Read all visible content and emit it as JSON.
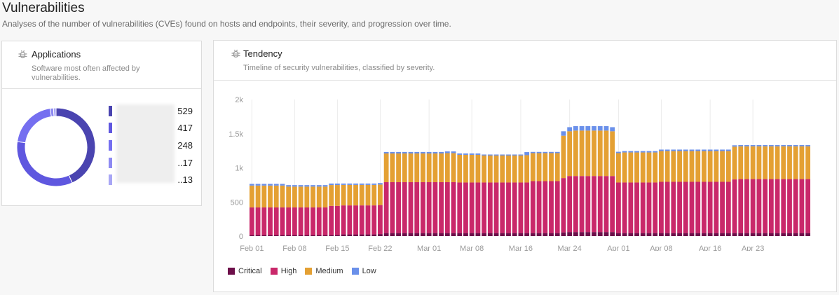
{
  "header": {
    "title": "Vulnerabilities",
    "description": "Analyses of the number of vulnerabilities (CVEs) found on hosts and endpoints, their severity, and progression over time."
  },
  "applications_card": {
    "icon": "bug-icon",
    "title": "Applications",
    "subtitle": "Software most often affected by vulnerabilities.",
    "items": [
      {
        "name": "",
        "value": "529",
        "count": 529,
        "color": "#4a44b0"
      },
      {
        "name": "",
        "value": "417",
        "count": 417,
        "color": "#5f57df"
      },
      {
        "name": "",
        "value": "248",
        "count": 248,
        "color": "#756ff0"
      },
      {
        "name": "",
        "value": "..17",
        "count": 17,
        "color": "#8e8af2"
      },
      {
        "name": "",
        "value": "..13",
        "count": 13,
        "color": "#a8a6f5"
      }
    ]
  },
  "tendency_card": {
    "icon": "bug-icon",
    "title": "Tendency",
    "subtitle": "Timeline of security vulnerabilities, classified by severity."
  },
  "chart_data": {
    "type": "bar",
    "stacked": true,
    "title": "Tendency",
    "xlabel": "",
    "ylabel": "",
    "ylim": [
      0,
      2000
    ],
    "yticks": [
      {
        "value": 0,
        "label": "0"
      },
      {
        "value": 500,
        "label": "500"
      },
      {
        "value": 1000,
        "label": "1k"
      },
      {
        "value": 1500,
        "label": "1.5k"
      },
      {
        "value": 2000,
        "label": "2k"
      }
    ],
    "xticks": [
      {
        "index": 0,
        "label": "Feb 01"
      },
      {
        "index": 7,
        "label": "Feb 08"
      },
      {
        "index": 14,
        "label": "Feb 15"
      },
      {
        "index": 21,
        "label": "Feb 22"
      },
      {
        "index": 29,
        "label": "Mar 01"
      },
      {
        "index": 36,
        "label": "Mar 08"
      },
      {
        "index": 44,
        "label": "Mar 16"
      },
      {
        "index": 52,
        "label": "Mar 24"
      },
      {
        "index": 60,
        "label": "Apr 01"
      },
      {
        "index": 67,
        "label": "Apr 08"
      },
      {
        "index": 75,
        "label": "Apr 16"
      },
      {
        "index": 82,
        "label": "Apr 23"
      }
    ],
    "grid": true,
    "legend_position": "bottom-left",
    "series_colors": {
      "Critical": "#6d0f4a",
      "High": "#c9286a",
      "Medium": "#e4a033",
      "Low": "#6a90ea"
    },
    "segments": [
      {
        "count": 6,
        "critical": 15,
        "high": 405,
        "medium": 320,
        "low": 25
      },
      {
        "count": 7,
        "critical": 15,
        "high": 405,
        "medium": 305,
        "low": 22
      },
      {
        "count": 2,
        "critical": 18,
        "high": 425,
        "medium": 305,
        "low": 22
      },
      {
        "count": 6,
        "critical": 25,
        "high": 425,
        "medium": 300,
        "low": 20
      },
      {
        "count": 1,
        "critical": 30,
        "high": 425,
        "medium": 300,
        "low": 22
      },
      {
        "count": 10,
        "critical": 45,
        "high": 745,
        "medium": 420,
        "low": 22
      },
      {
        "count": 2,
        "critical": 45,
        "high": 745,
        "medium": 425,
        "low": 25
      },
      {
        "count": 4,
        "critical": 45,
        "high": 740,
        "medium": 405,
        "low": 20
      },
      {
        "count": 7,
        "critical": 45,
        "high": 740,
        "medium": 395,
        "low": 15
      },
      {
        "count": 1,
        "critical": 45,
        "high": 740,
        "medium": 400,
        "low": 45
      },
      {
        "count": 5,
        "critical": 45,
        "high": 760,
        "medium": 410,
        "low": 18
      },
      {
        "count": 1,
        "critical": 55,
        "high": 795,
        "medium": 620,
        "low": 65
      },
      {
        "count": 1,
        "critical": 60,
        "high": 820,
        "medium": 655,
        "low": 60
      },
      {
        "count": 6,
        "critical": 60,
        "high": 820,
        "medium": 665,
        "low": 65
      },
      {
        "count": 1,
        "critical": 60,
        "high": 820,
        "medium": 655,
        "low": 60
      },
      {
        "count": 1,
        "critical": 45,
        "high": 740,
        "medium": 430,
        "low": 20
      },
      {
        "count": 6,
        "critical": 45,
        "high": 740,
        "medium": 440,
        "low": 20
      },
      {
        "count": 12,
        "critical": 45,
        "high": 750,
        "medium": 450,
        "low": 22
      },
      {
        "count": 1,
        "critical": 45,
        "high": 785,
        "medium": 480,
        "low": 20
      },
      {
        "count": 12,
        "critical": 45,
        "high": 790,
        "medium": 480,
        "low": 18
      }
    ],
    "series": [
      "Critical",
      "High",
      "Medium",
      "Low"
    ]
  },
  "legend": [
    {
      "label": "Critical",
      "color": "#6d0f4a"
    },
    {
      "label": "High",
      "color": "#c9286a"
    },
    {
      "label": "Medium",
      "color": "#e4a033"
    },
    {
      "label": "Low",
      "color": "#6a90ea"
    }
  ]
}
